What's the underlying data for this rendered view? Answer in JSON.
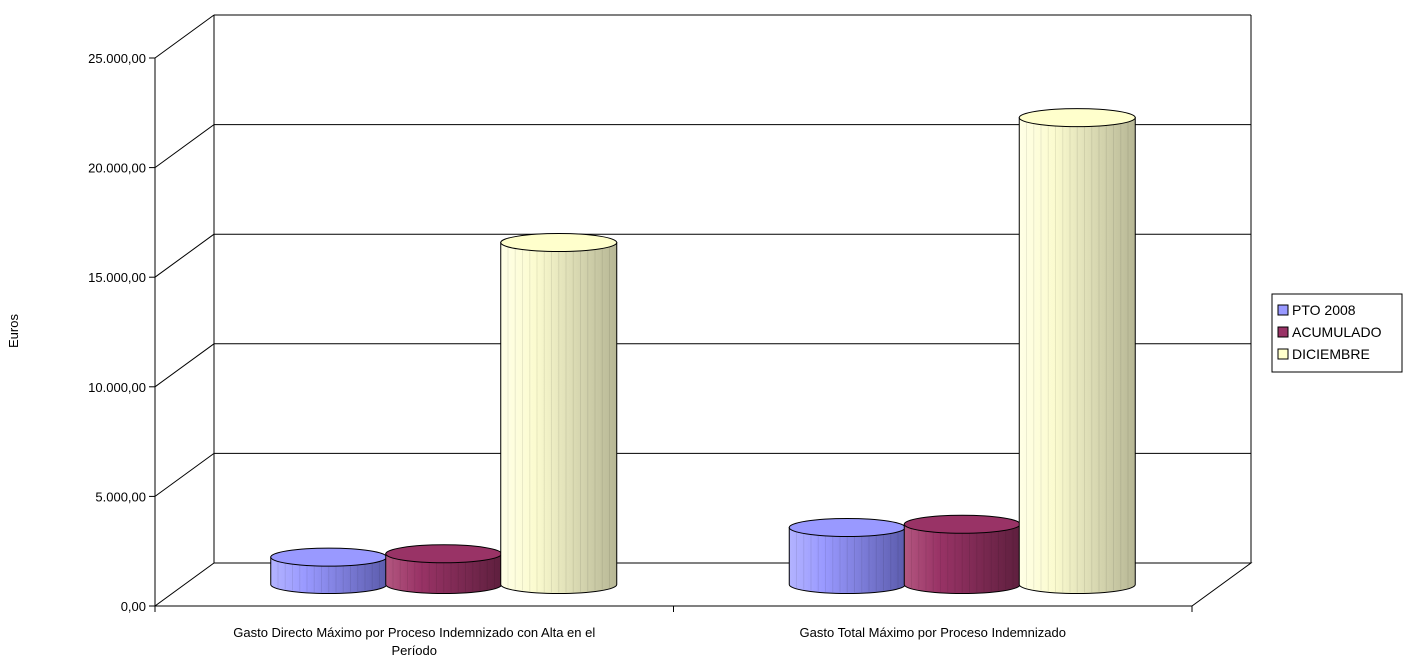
{
  "chart_data": {
    "type": "bar",
    "title": "",
    "ylabel": "Euros",
    "xlabel": "",
    "ylim": [
      0,
      25000
    ],
    "y_ticks": [
      0,
      5000,
      10000,
      15000,
      20000,
      25000
    ],
    "y_tick_labels": [
      "0,00",
      "5.000,00",
      "10.000,00",
      "15.000,00",
      "20.000,00",
      "25.000,00"
    ],
    "categories": [
      "Gasto Directo Máximo por Proceso Indemnizado con Alta en el Período",
      "Gasto Total Máximo por Proceso Indemnizado"
    ],
    "category_lines": [
      [
        "Gasto Directo Máximo por Proceso Indemnizado con Alta en el",
        "Período"
      ],
      [
        "Gasto Total Máximo por Proceso Indemnizado"
      ]
    ],
    "series": [
      {
        "name": "PTO 2008",
        "values": [
          1250,
          2600
        ],
        "color": "#9999FF"
      },
      {
        "name": "ACUMULADO",
        "values": [
          1400,
          2750
        ],
        "color": "#993366"
      },
      {
        "name": "DICIEMBRE",
        "values": [
          15600,
          21300
        ],
        "color": "#FFFFCC"
      }
    ],
    "legend_position": "right",
    "grid": true,
    "style": "3d-cylinder"
  }
}
